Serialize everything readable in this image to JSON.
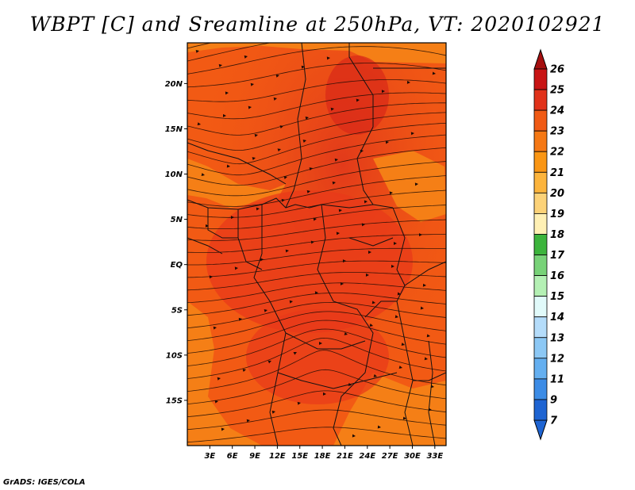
{
  "title": "WBPT [C] and Sreamline at 250hPa, VT: 2020102921",
  "credit": "GrADS: IGES/COLA",
  "colors": {
    "field_main": "#f25a14",
    "field_warm": "#e8391a",
    "field_hot": "#d82818",
    "field_cool": "#f57f16",
    "streamline": "#1a0a05",
    "border": "#111111"
  },
  "map": {
    "lat_ticks": [
      {
        "value": 20,
        "label": "20N"
      },
      {
        "value": 15,
        "label": "15N"
      },
      {
        "value": 10,
        "label": "10N"
      },
      {
        "value": 5,
        "label": "5N"
      },
      {
        "value": 0,
        "label": "EQ"
      },
      {
        "value": -5,
        "label": "5S"
      },
      {
        "value": -10,
        "label": "10S"
      },
      {
        "value": -15,
        "label": "15S"
      }
    ],
    "lon_ticks": [
      {
        "value": 3,
        "label": "3E"
      },
      {
        "value": 6,
        "label": "6E"
      },
      {
        "value": 9,
        "label": "9E"
      },
      {
        "value": 12,
        "label": "12E"
      },
      {
        "value": 15,
        "label": "15E"
      },
      {
        "value": 18,
        "label": "18E"
      },
      {
        "value": 21,
        "label": "21E"
      },
      {
        "value": 24,
        "label": "24E"
      },
      {
        "value": 27,
        "label": "27E"
      },
      {
        "value": 30,
        "label": "30E"
      },
      {
        "value": 33,
        "label": "33E"
      }
    ],
    "lon_range": [
      0,
      34.5
    ],
    "lat_range": [
      -20,
      24.5
    ]
  },
  "colorbar": {
    "levels": [
      {
        "label": "26",
        "color": "#a50f0f"
      },
      {
        "label": "25",
        "color": "#c81414"
      },
      {
        "label": "24",
        "color": "#e1321a"
      },
      {
        "label": "23",
        "color": "#f05a14"
      },
      {
        "label": "22",
        "color": "#f57814"
      },
      {
        "label": "21",
        "color": "#fa9614"
      },
      {
        "label": "20",
        "color": "#fcb43c"
      },
      {
        "label": "19",
        "color": "#fcd278"
      },
      {
        "label": "18",
        "color": "#fff0b4"
      },
      {
        "label": "17",
        "color": "#3cb43c"
      },
      {
        "label": "16",
        "color": "#78d278"
      },
      {
        "label": "15",
        "color": "#b4f0b4"
      },
      {
        "label": "14",
        "color": "#e1fafa"
      },
      {
        "label": "13",
        "color": "#b4dcfa"
      },
      {
        "label": "12",
        "color": "#8cc8f5"
      },
      {
        "label": "11",
        "color": "#64aff0"
      },
      {
        "label": "9",
        "color": "#3c8ce6"
      },
      {
        "label": "7",
        "color": "#1e64d2"
      }
    ],
    "top_triangle_color": "#a50f0f",
    "bottom_triangle_color": "#1e64d2"
  }
}
